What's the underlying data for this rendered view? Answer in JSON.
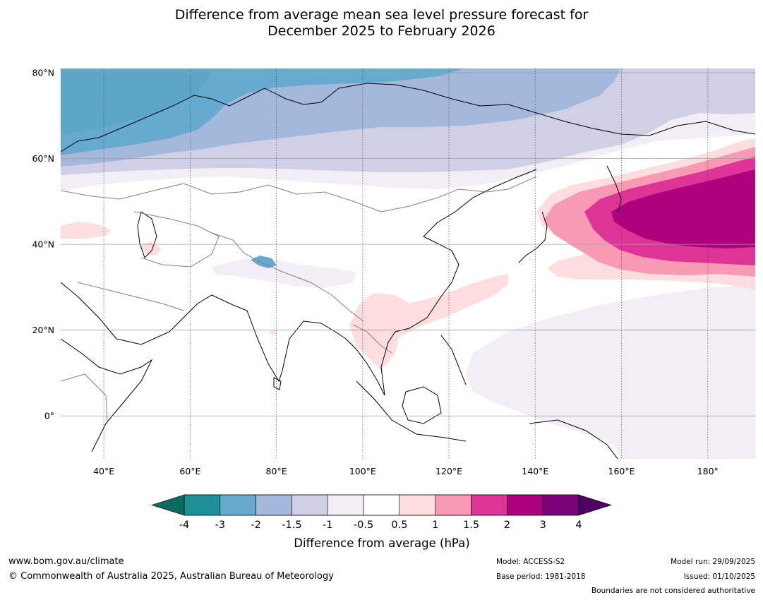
{
  "title": {
    "line1": "Difference from average mean sea level pressure forecast for",
    "line2": "December 2025 to February 2026"
  },
  "map": {
    "lon_range": [
      30,
      191
    ],
    "lat_range": [
      -10,
      81
    ],
    "lat_ticks": [
      {
        "value": 80,
        "label": "80°N"
      },
      {
        "value": 60,
        "label": "60°N"
      },
      {
        "value": 40,
        "label": "40°N"
      },
      {
        "value": 20,
        "label": "20°N"
      },
      {
        "value": 0,
        "label": "0°"
      }
    ],
    "lon_ticks": [
      {
        "value": 40,
        "label": "40°E"
      },
      {
        "value": 60,
        "label": "60°E"
      },
      {
        "value": 80,
        "label": "80°E"
      },
      {
        "value": 100,
        "label": "100°E"
      },
      {
        "value": 120,
        "label": "120°E"
      },
      {
        "value": 140,
        "label": "140°E"
      },
      {
        "value": 160,
        "label": "160°E"
      },
      {
        "value": 180,
        "label": "180°"
      }
    ]
  },
  "colorbar": {
    "boundaries": [
      "-4",
      "-3",
      "-2",
      "-1.5",
      "-1",
      "-0.5",
      "0.5",
      "1",
      "1.5",
      "2",
      "3",
      "4"
    ],
    "colors": [
      "#1b9097",
      "#66aad0",
      "#a3b8da",
      "#cfd0e5",
      "#f3edf5",
      "#ffffff",
      "#fddddd",
      "#f89ab4",
      "#dc3597",
      "#ad017d",
      "#7b0277"
    ],
    "under_color": "#0a6b5e",
    "over_color": "#4c0262",
    "label": "Difference from average (hPa)"
  },
  "footer": {
    "website": "www.bom.gov.au/climate",
    "copyright": "© Commonwealth of Australia 2025, Australian Bureau of Meteorology",
    "model": "Model: ACCESS-S2",
    "base_period": "Base period: 1981-2018",
    "model_run": "Model run: 29/09/2025",
    "issued": "Issued: 01/10/2025",
    "disclaimer": "Boundaries are not considered authoritative"
  }
}
